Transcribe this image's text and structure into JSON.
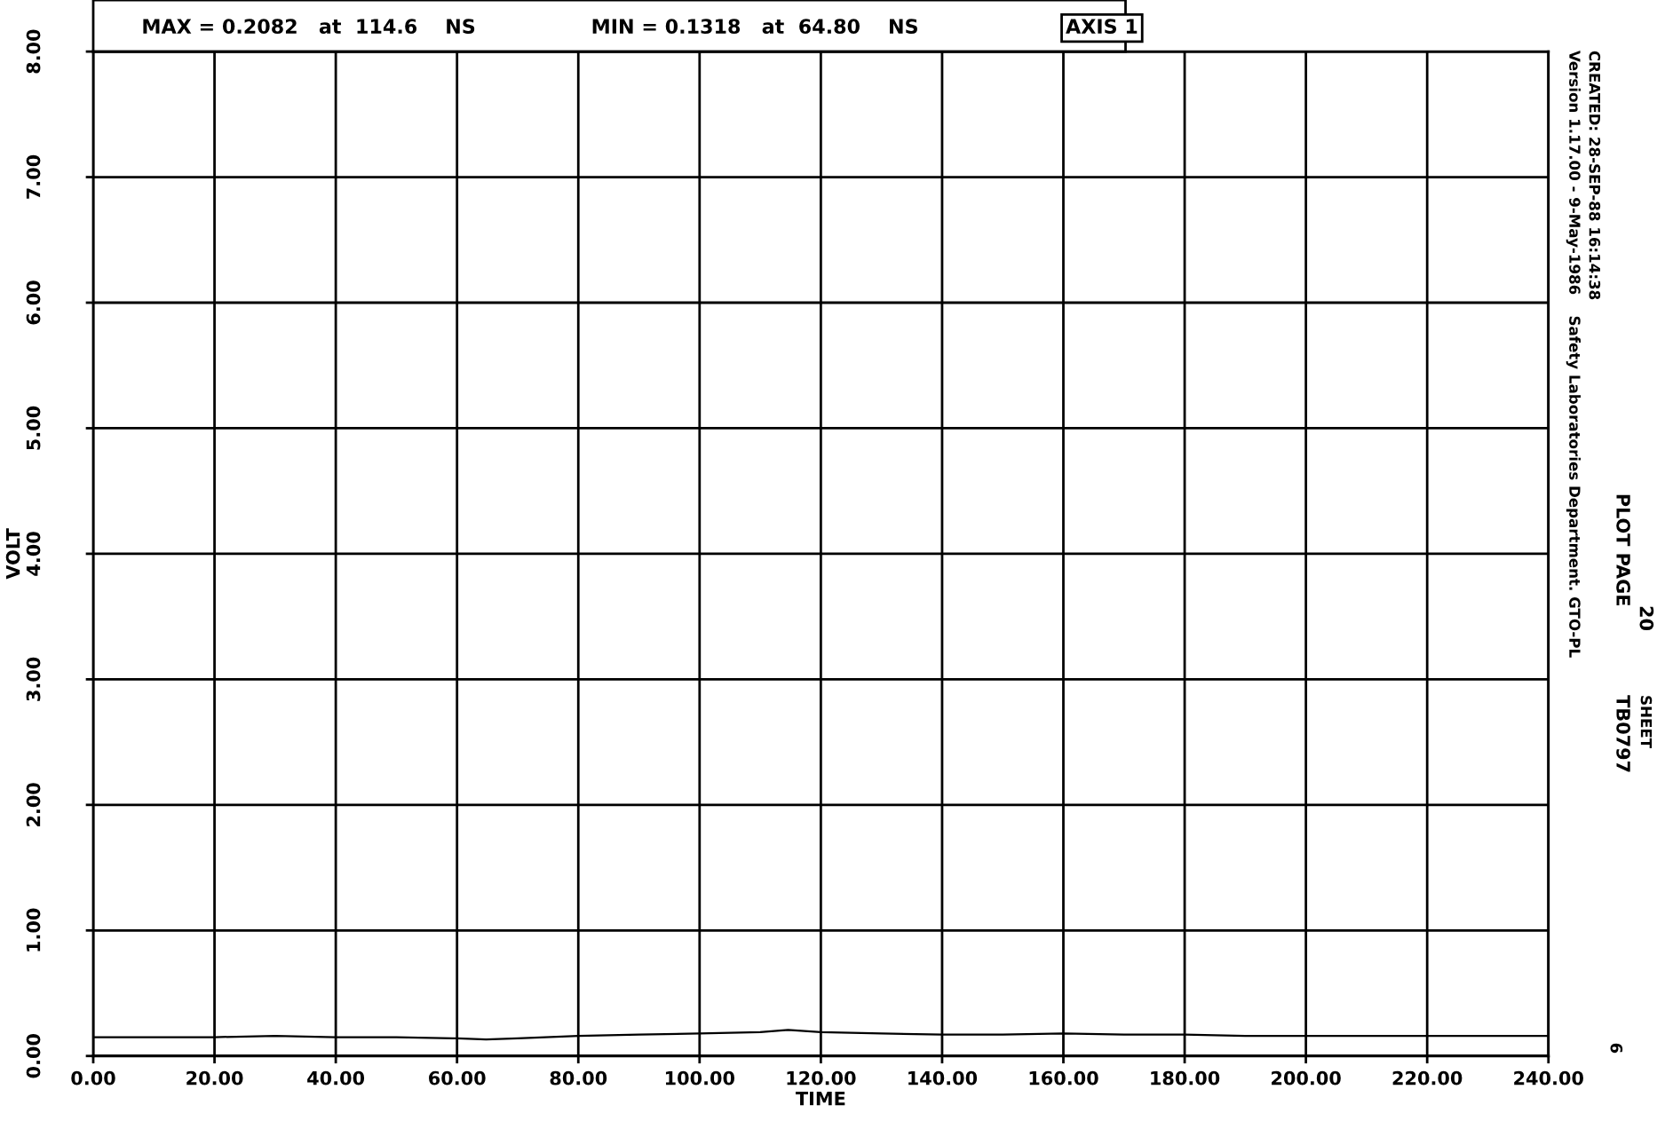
{
  "chart_data": {
    "type": "line",
    "xlabel": "TIME",
    "ylabel": "VOLT",
    "x": [
      0,
      10,
      20,
      30,
      40,
      50,
      60,
      64.8,
      70,
      80,
      90,
      100,
      110,
      114.6,
      120,
      130,
      140,
      150,
      160,
      170,
      180,
      190,
      200,
      210,
      220,
      230,
      240
    ],
    "series": [
      {
        "color": "#000000",
        "values": [
          0.15,
          0.15,
          0.15,
          0.16,
          0.15,
          0.15,
          0.14,
          0.1318,
          0.14,
          0.16,
          0.17,
          0.18,
          0.19,
          0.2082,
          0.19,
          0.18,
          0.17,
          0.17,
          0.18,
          0.17,
          0.17,
          0.16,
          0.16,
          0.16,
          0.16,
          0.16,
          0.16
        ]
      }
    ],
    "xlim": [
      0,
      240
    ],
    "ylim": [
      0,
      8
    ],
    "xticks": [
      {
        "value": 0,
        "label": "0.00"
      },
      {
        "value": 20,
        "label": "20.00"
      },
      {
        "value": 40,
        "label": "40.00"
      },
      {
        "value": 60,
        "label": "60.00"
      },
      {
        "value": 80,
        "label": "80.00"
      },
      {
        "value": 100,
        "label": "100.00"
      },
      {
        "value": 120,
        "label": "120.00"
      },
      {
        "value": 140,
        "label": "140.00"
      },
      {
        "value": 160,
        "label": "160.00"
      },
      {
        "value": 180,
        "label": "180.00"
      },
      {
        "value": 200,
        "label": "200.00"
      },
      {
        "value": 220,
        "label": "220.00"
      },
      {
        "value": 240,
        "label": "240.00"
      }
    ],
    "yticks": [
      {
        "value": 0,
        "label": "0.00"
      },
      {
        "value": 1,
        "label": "1.00"
      },
      {
        "value": 2,
        "label": "2.00"
      },
      {
        "value": 3,
        "label": "3.00"
      },
      {
        "value": 4,
        "label": "4.00"
      },
      {
        "value": 5,
        "label": "5.00"
      },
      {
        "value": 6,
        "label": "6.00"
      },
      {
        "value": 7,
        "label": "7.00"
      },
      {
        "value": 8,
        "label": "8.00"
      }
    ],
    "grid": true,
    "marker": "none",
    "line_style": "solid",
    "legend": false,
    "annotations": [
      "MAX = 0.2082   at  114.6    NS",
      "MIN = 0.1318   at  64.80    NS",
      "AXIS 1",
      "Version 1.17.00 - 9-May-1986    Safety Laboratories Department. GTO-PL",
      "CREATED: 28-SEP-88 16:14:38",
      "PLOT PAGE",
      "20",
      "TB0797",
      "SHEET",
      "6"
    ]
  }
}
